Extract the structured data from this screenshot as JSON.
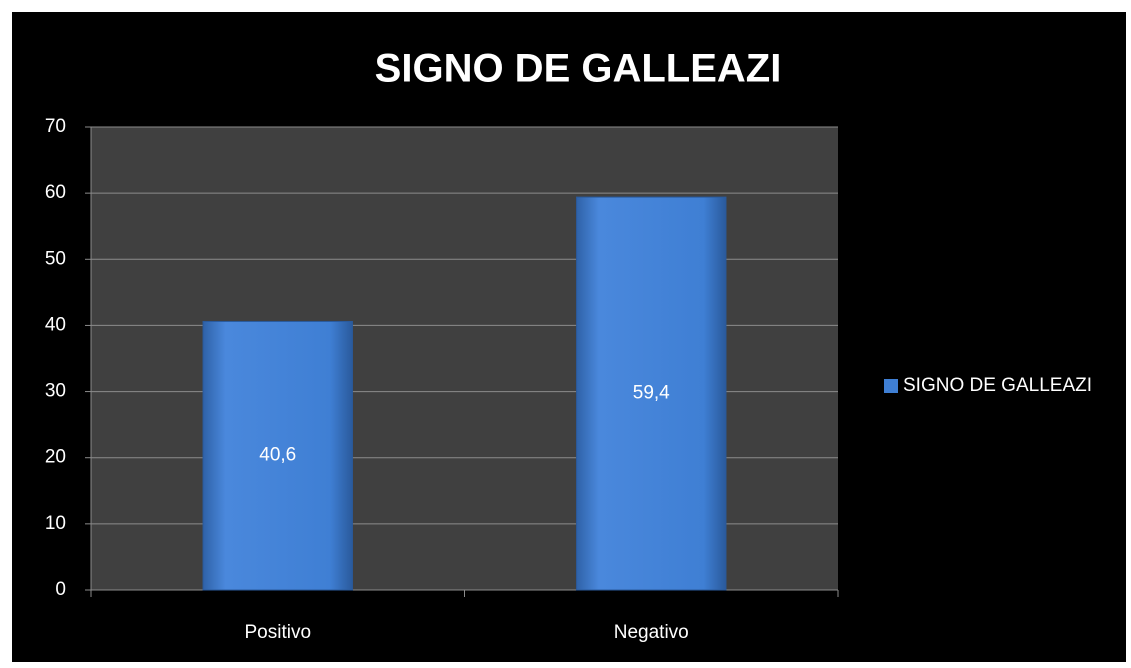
{
  "chart_data": {
    "type": "bar",
    "title": "SIGNO DE GALLEAZI",
    "categories": [
      "Positivo",
      "Negativo"
    ],
    "series": [
      {
        "name": "SIGNO DE GALLEAZI",
        "color": "#3f7fd4",
        "values": [
          40.6,
          59.4
        ],
        "value_labels": [
          "40,6",
          "59,4"
        ]
      }
    ],
    "ylim": [
      0,
      70
    ],
    "yticks": [
      0,
      10,
      20,
      30,
      40,
      50,
      60,
      70
    ],
    "grid": true,
    "legend": "right"
  }
}
